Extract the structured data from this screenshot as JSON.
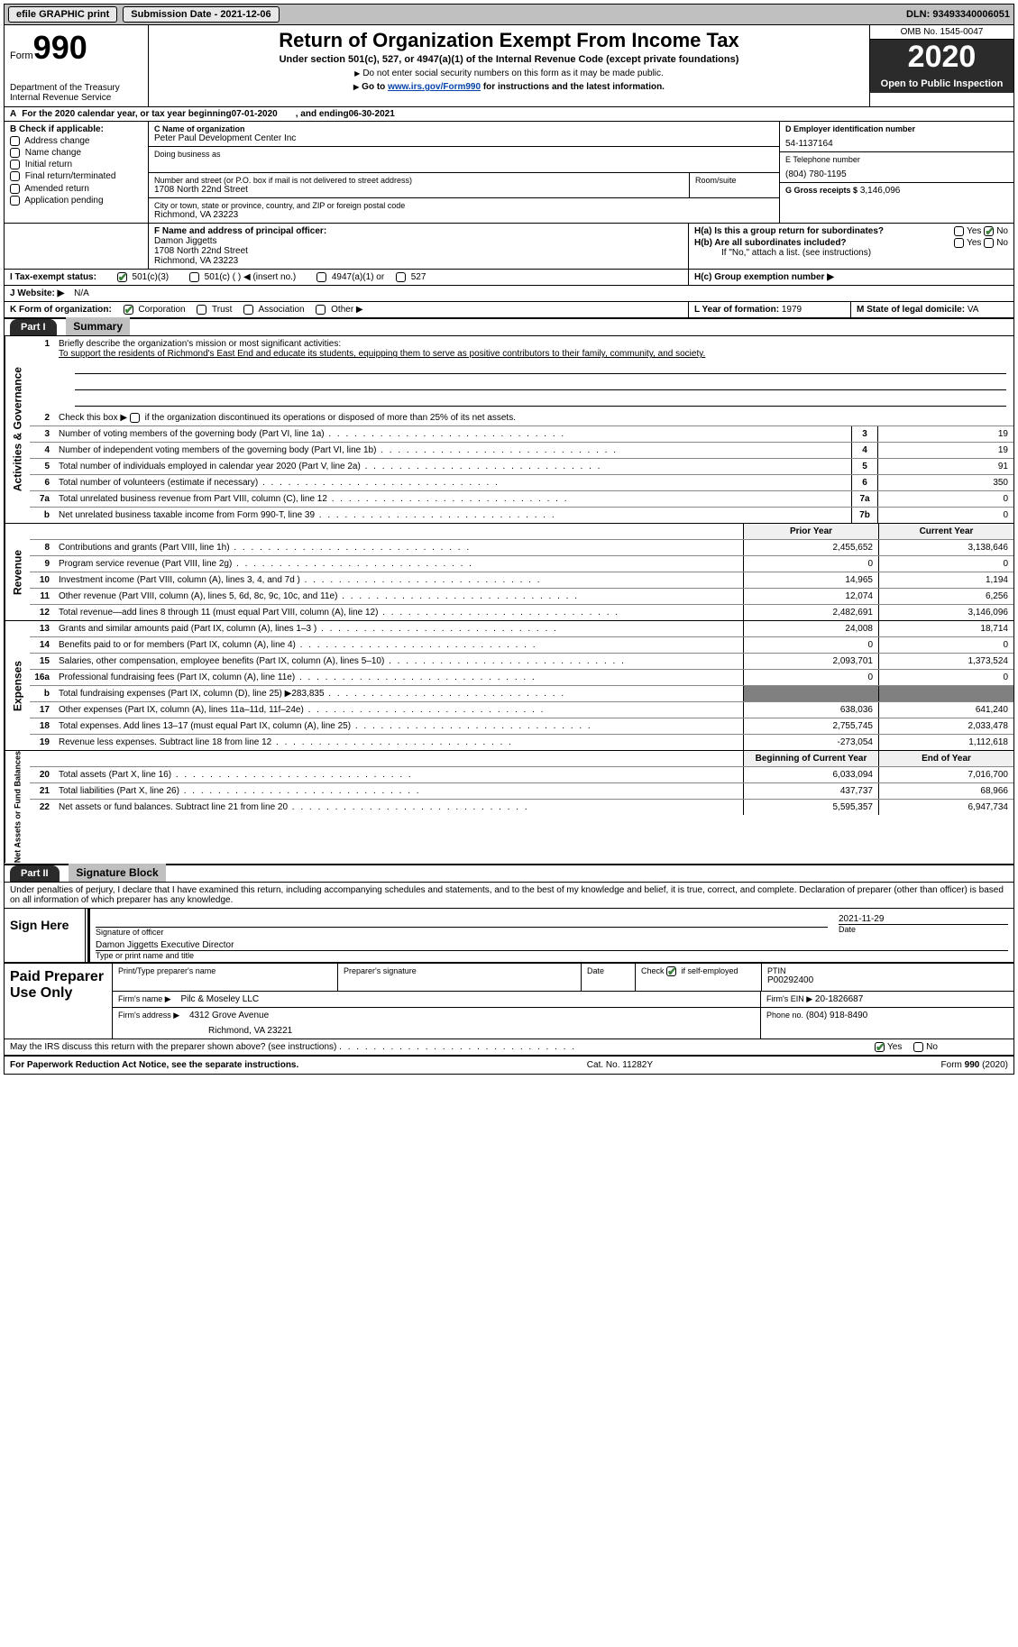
{
  "topbar": {
    "efile": "efile GRAPHIC print",
    "submission_label": "Submission Date - 2021-12-06",
    "dln_label": "DLN: 93493340006051"
  },
  "header": {
    "form_label": "Form",
    "form_number": "990",
    "dept": "Department of the Treasury",
    "irs": "Internal Revenue Service",
    "title": "Return of Organization Exempt From Income Tax",
    "subtitle": "Under section 501(c), 527, or 4947(a)(1) of the Internal Revenue Code (except private foundations)",
    "note1": "Do not enter social security numbers on this form as it may be made public.",
    "note2_pre": "Go to ",
    "note2_link": "www.irs.gov/Form990",
    "note2_post": " for instructions and the latest information.",
    "omb": "OMB No. 1545-0047",
    "year": "2020",
    "open": "Open to Public Inspection"
  },
  "period": {
    "text_a": "For the 2020 calendar year, or tax year beginning ",
    "begin": "07-01-2020",
    "text_b": ", and ending ",
    "end": "06-30-2021"
  },
  "boxB": {
    "label": "B Check if applicable:",
    "items": [
      "Address change",
      "Name change",
      "Initial return",
      "Final return/terminated",
      "Amended return",
      "Application pending"
    ]
  },
  "boxC": {
    "label": "C Name of organization",
    "name": "Peter Paul Development Center Inc",
    "dba_label": "Doing business as",
    "addr_label": "Number and street (or P.O. box if mail is not delivered to street address)",
    "room_label": "Room/suite",
    "addr": "1708 North 22nd Street",
    "city_label": "City or town, state or province, country, and ZIP or foreign postal code",
    "city": "Richmond, VA  23223"
  },
  "boxD": {
    "label": "D Employer identification number",
    "value": "54-1137164"
  },
  "boxE": {
    "label": "E Telephone number",
    "value": "(804) 780-1195"
  },
  "boxG": {
    "label": "G Gross receipts $",
    "value": "3,146,096"
  },
  "boxF": {
    "label": "F Name and address of principal officer:",
    "name": "Damon Jiggetts",
    "addr1": "1708 North 22nd Street",
    "addr2": "Richmond, VA  23223"
  },
  "boxH": {
    "a_label": "H(a)  Is this a group return for subordinates?",
    "yes": "Yes",
    "no": "No",
    "b_label": "H(b)  Are all subordinates included?",
    "b_note": "If \"No,\" attach a list. (see instructions)",
    "c_label": "H(c)  Group exemption number ▶"
  },
  "boxI": {
    "label": "I  Tax-exempt status:",
    "opt1": "501(c)(3)",
    "opt2": "501(c) (  ) ◀ (insert no.)",
    "opt3": "4947(a)(1) or",
    "opt4": "527"
  },
  "boxJ": {
    "label": "J  Website: ▶",
    "value": "N/A"
  },
  "boxK": {
    "label": "K Form of organization:",
    "corp": "Corporation",
    "trust": "Trust",
    "assoc": "Association",
    "other": "Other ▶"
  },
  "boxL": {
    "label": "L Year of formation:",
    "value": "1979"
  },
  "boxM": {
    "label": "M State of legal domicile:",
    "value": "VA"
  },
  "part1": {
    "label": "Part I",
    "title": "Summary",
    "q1": "Briefly describe the organization's mission or most significant activities:",
    "mission": "To support the residents of Richmond's East End and educate its students, equipping them to serve as positive contributors to their family, community, and society.",
    "q2": "Check this box ▶         if the organization discontinued its operations or disposed of more than 25% of its net assets.",
    "lines_gov": [
      {
        "n": "3",
        "t": "Number of voting members of the governing body (Part VI, line 1a)",
        "box": "3",
        "v": "19"
      },
      {
        "n": "4",
        "t": "Number of independent voting members of the governing body (Part VI, line 1b)",
        "box": "4",
        "v": "19"
      },
      {
        "n": "5",
        "t": "Total number of individuals employed in calendar year 2020 (Part V, line 2a)",
        "box": "5",
        "v": "91"
      },
      {
        "n": "6",
        "t": "Total number of volunteers (estimate if necessary)",
        "box": "6",
        "v": "350"
      },
      {
        "n": "7a",
        "t": "Total unrelated business revenue from Part VIII, column (C), line 12",
        "box": "7a",
        "v": "0"
      },
      {
        "n": "b",
        "t": "Net unrelated business taxable income from Form 990-T, line 39",
        "box": "7b",
        "v": "0"
      }
    ],
    "col_prior": "Prior Year",
    "col_current": "Current Year",
    "lines_rev": [
      {
        "n": "8",
        "t": "Contributions and grants (Part VIII, line 1h)",
        "p": "2,455,652",
        "c": "3,138,646"
      },
      {
        "n": "9",
        "t": "Program service revenue (Part VIII, line 2g)",
        "p": "0",
        "c": "0"
      },
      {
        "n": "10",
        "t": "Investment income (Part VIII, column (A), lines 3, 4, and 7d )",
        "p": "14,965",
        "c": "1,194"
      },
      {
        "n": "11",
        "t": "Other revenue (Part VIII, column (A), lines 5, 6d, 8c, 9c, 10c, and 11e)",
        "p": "12,074",
        "c": "6,256"
      },
      {
        "n": "12",
        "t": "Total revenue—add lines 8 through 11 (must equal Part VIII, column (A), line 12)",
        "p": "2,482,691",
        "c": "3,146,096"
      }
    ],
    "lines_exp": [
      {
        "n": "13",
        "t": "Grants and similar amounts paid (Part IX, column (A), lines 1–3 )",
        "p": "24,008",
        "c": "18,714"
      },
      {
        "n": "14",
        "t": "Benefits paid to or for members (Part IX, column (A), line 4)",
        "p": "0",
        "c": "0"
      },
      {
        "n": "15",
        "t": "Salaries, other compensation, employee benefits (Part IX, column (A), lines 5–10)",
        "p": "2,093,701",
        "c": "1,373,524"
      },
      {
        "n": "16a",
        "t": "Professional fundraising fees (Part IX, column (A), line 11e)",
        "p": "0",
        "c": "0"
      },
      {
        "n": "b",
        "t": "Total fundraising expenses (Part IX, column (D), line 25) ▶283,835",
        "p": "",
        "c": "",
        "shade": true
      },
      {
        "n": "17",
        "t": "Other expenses (Part IX, column (A), lines 11a–11d, 11f–24e)",
        "p": "638,036",
        "c": "641,240"
      },
      {
        "n": "18",
        "t": "Total expenses. Add lines 13–17 (must equal Part IX, column (A), line 25)",
        "p": "2,755,745",
        "c": "2,033,478"
      },
      {
        "n": "19",
        "t": "Revenue less expenses. Subtract line 18 from line 12",
        "p": "-273,054",
        "c": "1,112,618"
      }
    ],
    "col_begin": "Beginning of Current Year",
    "col_end": "End of Year",
    "lines_net": [
      {
        "n": "20",
        "t": "Total assets (Part X, line 16)",
        "p": "6,033,094",
        "c": "7,016,700"
      },
      {
        "n": "21",
        "t": "Total liabilities (Part X, line 26)",
        "p": "437,737",
        "c": "68,966"
      },
      {
        "n": "22",
        "t": "Net assets or fund balances. Subtract line 21 from line 20",
        "p": "5,595,357",
        "c": "6,947,734"
      }
    ],
    "tabs": {
      "gov": "Activities & Governance",
      "rev": "Revenue",
      "exp": "Expenses",
      "net": "Net Assets or Fund Balances"
    }
  },
  "part2": {
    "label": "Part II",
    "title": "Signature Block",
    "decl": "Under penalties of perjury, I declare that I have examined this return, including accompanying schedules and statements, and to the best of my knowledge and belief, it is true, correct, and complete. Declaration of preparer (other than officer) is based on all information of which preparer has any knowledge.",
    "sign_here": "Sign Here",
    "sig_officer": "Signature of officer",
    "sig_date": "Date",
    "sig_date_val": "2021-11-29",
    "officer_name": "Damon Jiggetts  Executive Director",
    "type_name": "Type or print name and title",
    "paid": "Paid Preparer Use Only",
    "prep_name_label": "Print/Type preparer's name",
    "prep_sig_label": "Preparer's signature",
    "prep_date_label": "Date",
    "check_if": "Check         if self-employed",
    "ptin_label": "PTIN",
    "ptin": "P00292400",
    "firm_name_label": "Firm's name    ▶",
    "firm_name": "Pilc & Moseley LLC",
    "firm_ein_label": "Firm's EIN ▶",
    "firm_ein": "20-1826687",
    "firm_addr_label": "Firm's address ▶",
    "firm_addr1": "4312 Grove Avenue",
    "firm_addr2": "Richmond, VA  23221",
    "phone_label": "Phone no.",
    "phone": "(804) 918-8490",
    "discuss": "May the IRS discuss this return with the preparer shown above? (see instructions)"
  },
  "footer": {
    "left": "For Paperwork Reduction Act Notice, see the separate instructions.",
    "mid": "Cat. No. 11282Y",
    "right": "Form 990 (2020)"
  }
}
